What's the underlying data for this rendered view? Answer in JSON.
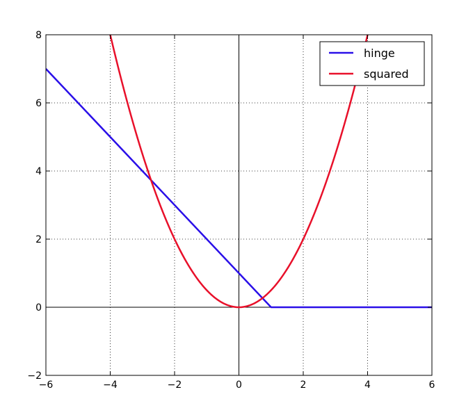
{
  "chart_data": {
    "type": "line",
    "title": "",
    "xlabel": "",
    "ylabel": "",
    "xlim": [
      -6,
      6
    ],
    "ylim": [
      -2,
      8
    ],
    "xticks": [
      -6,
      -4,
      -2,
      0,
      2,
      4,
      6
    ],
    "yticks": [
      -2,
      0,
      2,
      4,
      6,
      8
    ],
    "xtick_labels": [
      "−6",
      "−4",
      "−2",
      "0",
      "2",
      "4",
      "6"
    ],
    "ytick_labels": [
      "−2",
      "0",
      "2",
      "4",
      "6",
      "8"
    ],
    "grid": true,
    "legend_position": "top-right",
    "series": [
      {
        "name": "hinge",
        "color": "#2a0fe8",
        "x": [
          -6,
          1,
          6
        ],
        "y": [
          7,
          0,
          0
        ]
      },
      {
        "name": "squared",
        "color": "#e8102a",
        "x": [
          -4,
          -3.5,
          -3,
          -2.5,
          -2,
          -1.5,
          -1,
          -0.5,
          0,
          0.5,
          1,
          1.5,
          2,
          2.5,
          3,
          3.5,
          4
        ],
        "y": [
          8,
          6.125,
          4.5,
          3.125,
          2,
          1.125,
          0.5,
          0.125,
          0,
          0.125,
          0.5,
          1.125,
          2,
          3.125,
          4.5,
          6.125,
          8
        ]
      }
    ]
  }
}
